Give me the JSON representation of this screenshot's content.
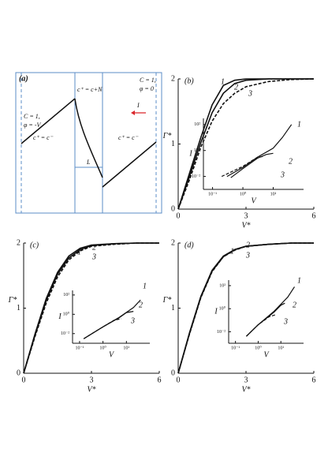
{
  "diagram": {
    "label": "(a)",
    "top_mid": "c⁺ = c+N",
    "right_c": "C = 1,",
    "right_phi": "φ = 0",
    "current": "I",
    "left_c": "C = 1,",
    "left_phi": "φ = -V",
    "left_region": "c⁺ = c⁻",
    "length": "L",
    "right_region": "c⁺ = c⁻"
  },
  "chart_data": [
    {
      "type": "line",
      "panel": "(b)",
      "xlabel": "V*",
      "ylabel": "Γ*",
      "xlim": [
        0,
        6
      ],
      "ylim": [
        0,
        2
      ],
      "xticks": [
        0,
        3,
        6
      ],
      "yticks": [
        0,
        1,
        2
      ],
      "series": [
        {
          "name": "1",
          "color": "#111111",
          "dashed": false,
          "x": [
            0,
            0.5,
            1,
            1.5,
            2,
            2.5,
            3,
            4,
            5,
            6
          ],
          "values": [
            0,
            0.55,
            1.1,
            1.6,
            1.9,
            1.98,
            2,
            2,
            2,
            2
          ]
        },
        {
          "name": "2",
          "color": "#111111",
          "dashed": false,
          "x": [
            0,
            0.5,
            1,
            1.5,
            2,
            2.5,
            3,
            4,
            5,
            6
          ],
          "values": [
            0,
            0.5,
            1.02,
            1.48,
            1.78,
            1.93,
            1.98,
            2,
            2,
            2
          ]
        },
        {
          "name": "3",
          "color": "#111111",
          "dashed": true,
          "x": [
            0,
            0.5,
            1,
            1.5,
            2,
            2.5,
            3,
            4,
            5,
            6
          ],
          "values": [
            0,
            0.45,
            0.95,
            1.35,
            1.62,
            1.78,
            1.88,
            1.96,
            1.99,
            2
          ]
        }
      ]
    },
    {
      "type": "line",
      "log": true,
      "xlabel": "V",
      "ylabel": "I",
      "xlim": [
        0.05,
        100
      ],
      "ylim": [
        0.001,
        300
      ],
      "xticks": [
        {
          "value": 0.1,
          "label": "10⁻¹"
        },
        {
          "value": 1,
          "label": "10⁰"
        },
        {
          "value": 10,
          "label": "10¹"
        }
      ],
      "yticks": [
        {
          "value": 0.01,
          "label": "10⁻²"
        },
        {
          "value": 1,
          "label": "10⁰"
        },
        {
          "value": 100,
          "label": "10²"
        }
      ],
      "series": [
        {
          "name": "1",
          "color": "#111111",
          "dashed": false,
          "x": [
            0.3,
            1,
            3,
            10,
            20,
            40
          ],
          "values": [
            0.01,
            0.05,
            0.3,
            1.5,
            10,
            100
          ]
        },
        {
          "name": "2",
          "color": "#111111",
          "dashed": false,
          "x": [
            0.4,
            1,
            3,
            6,
            10
          ],
          "values": [
            0.008,
            0.04,
            0.25,
            0.5,
            0.6
          ]
        },
        {
          "name": "3",
          "color": "#111111",
          "dashed": true,
          "x": [
            0.2,
            1,
            3,
            5
          ],
          "values": [
            0.01,
            0.06,
            0.3,
            0.35
          ]
        }
      ]
    },
    {
      "type": "line",
      "panel": "(c)",
      "xlabel": "V*",
      "ylabel": "Γ*",
      "xlim": [
        0,
        6
      ],
      "ylim": [
        0,
        2
      ],
      "xticks": [
        0,
        3,
        6
      ],
      "yticks": [
        0,
        1,
        2
      ],
      "series": [
        {
          "name": "1",
          "color": "#111111",
          "dashed": false,
          "x": [
            0,
            0.5,
            1,
            1.5,
            2,
            2.5,
            3,
            4,
            5,
            6
          ],
          "values": [
            0,
            0.6,
            1.15,
            1.55,
            1.8,
            1.92,
            1.97,
            1.99,
            2,
            2
          ]
        },
        {
          "name": "2",
          "color": "#111111",
          "dashed": false,
          "x": [
            0,
            0.5,
            1,
            1.5,
            2,
            2.5,
            3,
            4,
            5,
            6
          ],
          "values": [
            0,
            0.58,
            1.12,
            1.52,
            1.77,
            1.9,
            1.96,
            1.99,
            2,
            2
          ]
        },
        {
          "name": "3",
          "color": "#111111",
          "dashed": true,
          "x": [
            0,
            0.5,
            1,
            1.5,
            2,
            2.5,
            3,
            4,
            5,
            6
          ],
          "values": [
            0,
            0.56,
            1.08,
            1.48,
            1.74,
            1.88,
            1.95,
            1.98,
            2,
            2
          ]
        }
      ]
    },
    {
      "type": "line",
      "log": true,
      "xlabel": "V",
      "ylabel": "I",
      "xlim": [
        0.05,
        100
      ],
      "ylim": [
        0.001,
        300
      ],
      "xticks": [
        {
          "value": 0.1,
          "label": "10⁻¹"
        },
        {
          "value": 1,
          "label": "10⁰"
        },
        {
          "value": 10,
          "label": "10¹"
        }
      ],
      "yticks": [
        {
          "value": 0.01,
          "label": "10⁻²"
        },
        {
          "value": 1,
          "label": "10⁰"
        },
        {
          "value": 100,
          "label": "10²"
        }
      ],
      "series": [
        {
          "name": "1",
          "color": "#111111",
          "dashed": false,
          "x": [
            0.15,
            1,
            5,
            20,
            40
          ],
          "values": [
            0.003,
            0.05,
            0.5,
            5,
            30
          ]
        },
        {
          "name": "2",
          "color": "#111111",
          "dashed": false,
          "x": [
            0.15,
            1,
            5,
            10,
            20
          ],
          "values": [
            0.003,
            0.05,
            0.45,
            1.5,
            2
          ]
        },
        {
          "name": "3",
          "color": "#111111",
          "dashed": true,
          "x": [
            0.15,
            1,
            3,
            6
          ],
          "values": [
            0.003,
            0.05,
            0.25,
            0.35
          ]
        }
      ]
    },
    {
      "type": "line",
      "panel": "(d)",
      "xlabel": "V*",
      "ylabel": "Γ*",
      "xlim": [
        0,
        6
      ],
      "ylim": [
        0,
        2
      ],
      "xticks": [
        0,
        3,
        6
      ],
      "yticks": [
        0,
        1,
        2
      ],
      "series": [
        {
          "name": "1",
          "color": "#111111",
          "dashed": false,
          "x": [
            0,
            0.5,
            1,
            1.5,
            2,
            2.5,
            3,
            4,
            5,
            6
          ],
          "values": [
            0,
            0.62,
            1.18,
            1.58,
            1.8,
            1.9,
            1.95,
            1.98,
            2,
            2
          ]
        },
        {
          "name": "2",
          "color": "#111111",
          "dashed": false,
          "x": [
            0,
            0.5,
            1,
            1.5,
            2,
            2.5,
            3,
            4,
            5,
            6
          ],
          "values": [
            0,
            0.61,
            1.17,
            1.57,
            1.79,
            1.9,
            1.95,
            1.98,
            2,
            2
          ]
        },
        {
          "name": "3",
          "color": "#111111",
          "dashed": true,
          "x": [
            0,
            0.5,
            1,
            1.5,
            2,
            2.5,
            3,
            4,
            5,
            6
          ],
          "values": [
            0,
            0.6,
            1.16,
            1.56,
            1.79,
            1.89,
            1.95,
            1.98,
            2,
            2
          ]
        }
      ]
    },
    {
      "type": "line",
      "log": true,
      "xlabel": "V",
      "ylabel": "I",
      "xlim": [
        0.05,
        100
      ],
      "ylim": [
        0.001,
        300
      ],
      "xticks": [
        {
          "value": 0.1,
          "label": "10⁻¹"
        },
        {
          "value": 1,
          "label": "10⁰"
        },
        {
          "value": 10,
          "label": "10¹"
        }
      ],
      "yticks": [
        {
          "value": 0.01,
          "label": "10⁻²"
        },
        {
          "value": 1,
          "label": "10⁰"
        },
        {
          "value": 100,
          "label": "10²"
        }
      ],
      "series": [
        {
          "name": "1",
          "color": "#111111",
          "dashed": false,
          "x": [
            0.3,
            1,
            5,
            20,
            40
          ],
          "values": [
            0.004,
            0.04,
            0.6,
            10,
            80
          ]
        },
        {
          "name": "2",
          "color": "#111111",
          "dashed": false,
          "x": [
            0.3,
            1,
            5,
            10,
            15
          ],
          "values": [
            0.004,
            0.04,
            0.5,
            2,
            3
          ]
        },
        {
          "name": "3",
          "color": "#111111",
          "dashed": true,
          "x": [
            0.3,
            1,
            3,
            6
          ],
          "values": [
            0.004,
            0.04,
            0.2,
            0.3
          ]
        }
      ]
    }
  ]
}
